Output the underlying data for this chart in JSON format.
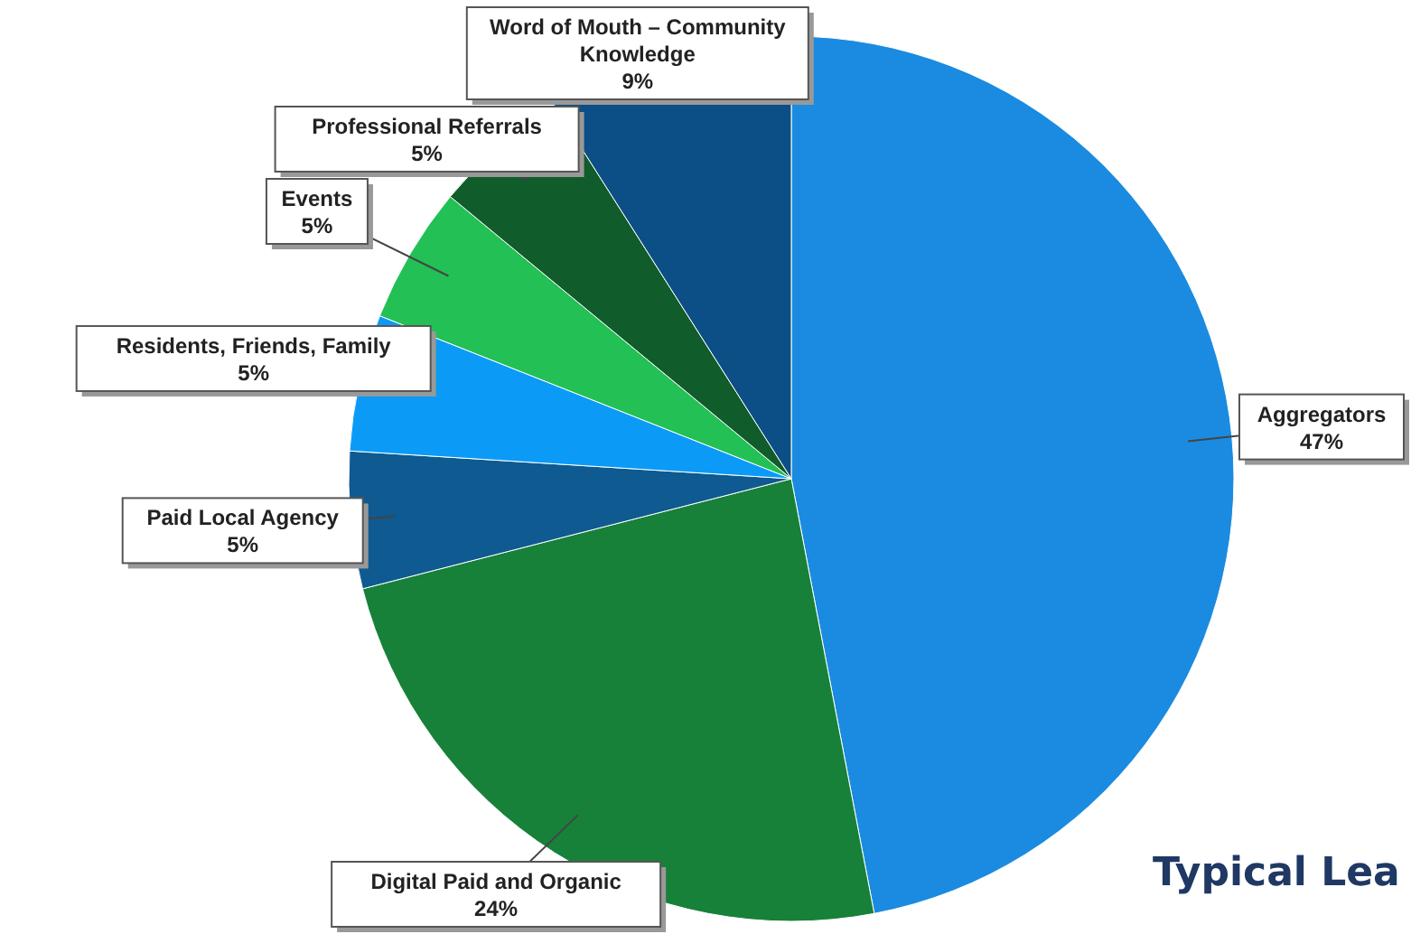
{
  "chart_data": {
    "type": "pie",
    "title": "Typical Lea",
    "categories": [
      "Aggregators",
      "Digital Paid and Organic",
      "Paid Local Agency",
      "Residents, Friends, Family",
      "Events",
      "Professional Referrals",
      "Word of Mouth – Community Knowledge"
    ],
    "values": [
      47,
      24,
      5,
      5,
      5,
      5,
      9
    ],
    "value_labels": [
      "47%",
      "24%",
      "5%",
      "5%",
      "5%",
      "5%",
      "9%"
    ],
    "colors": [
      "#1a8be0",
      "#178139",
      "#0e5a91",
      "#0b9bf6",
      "#22c055",
      "#105c2a",
      "#0b4f86"
    ]
  }
}
